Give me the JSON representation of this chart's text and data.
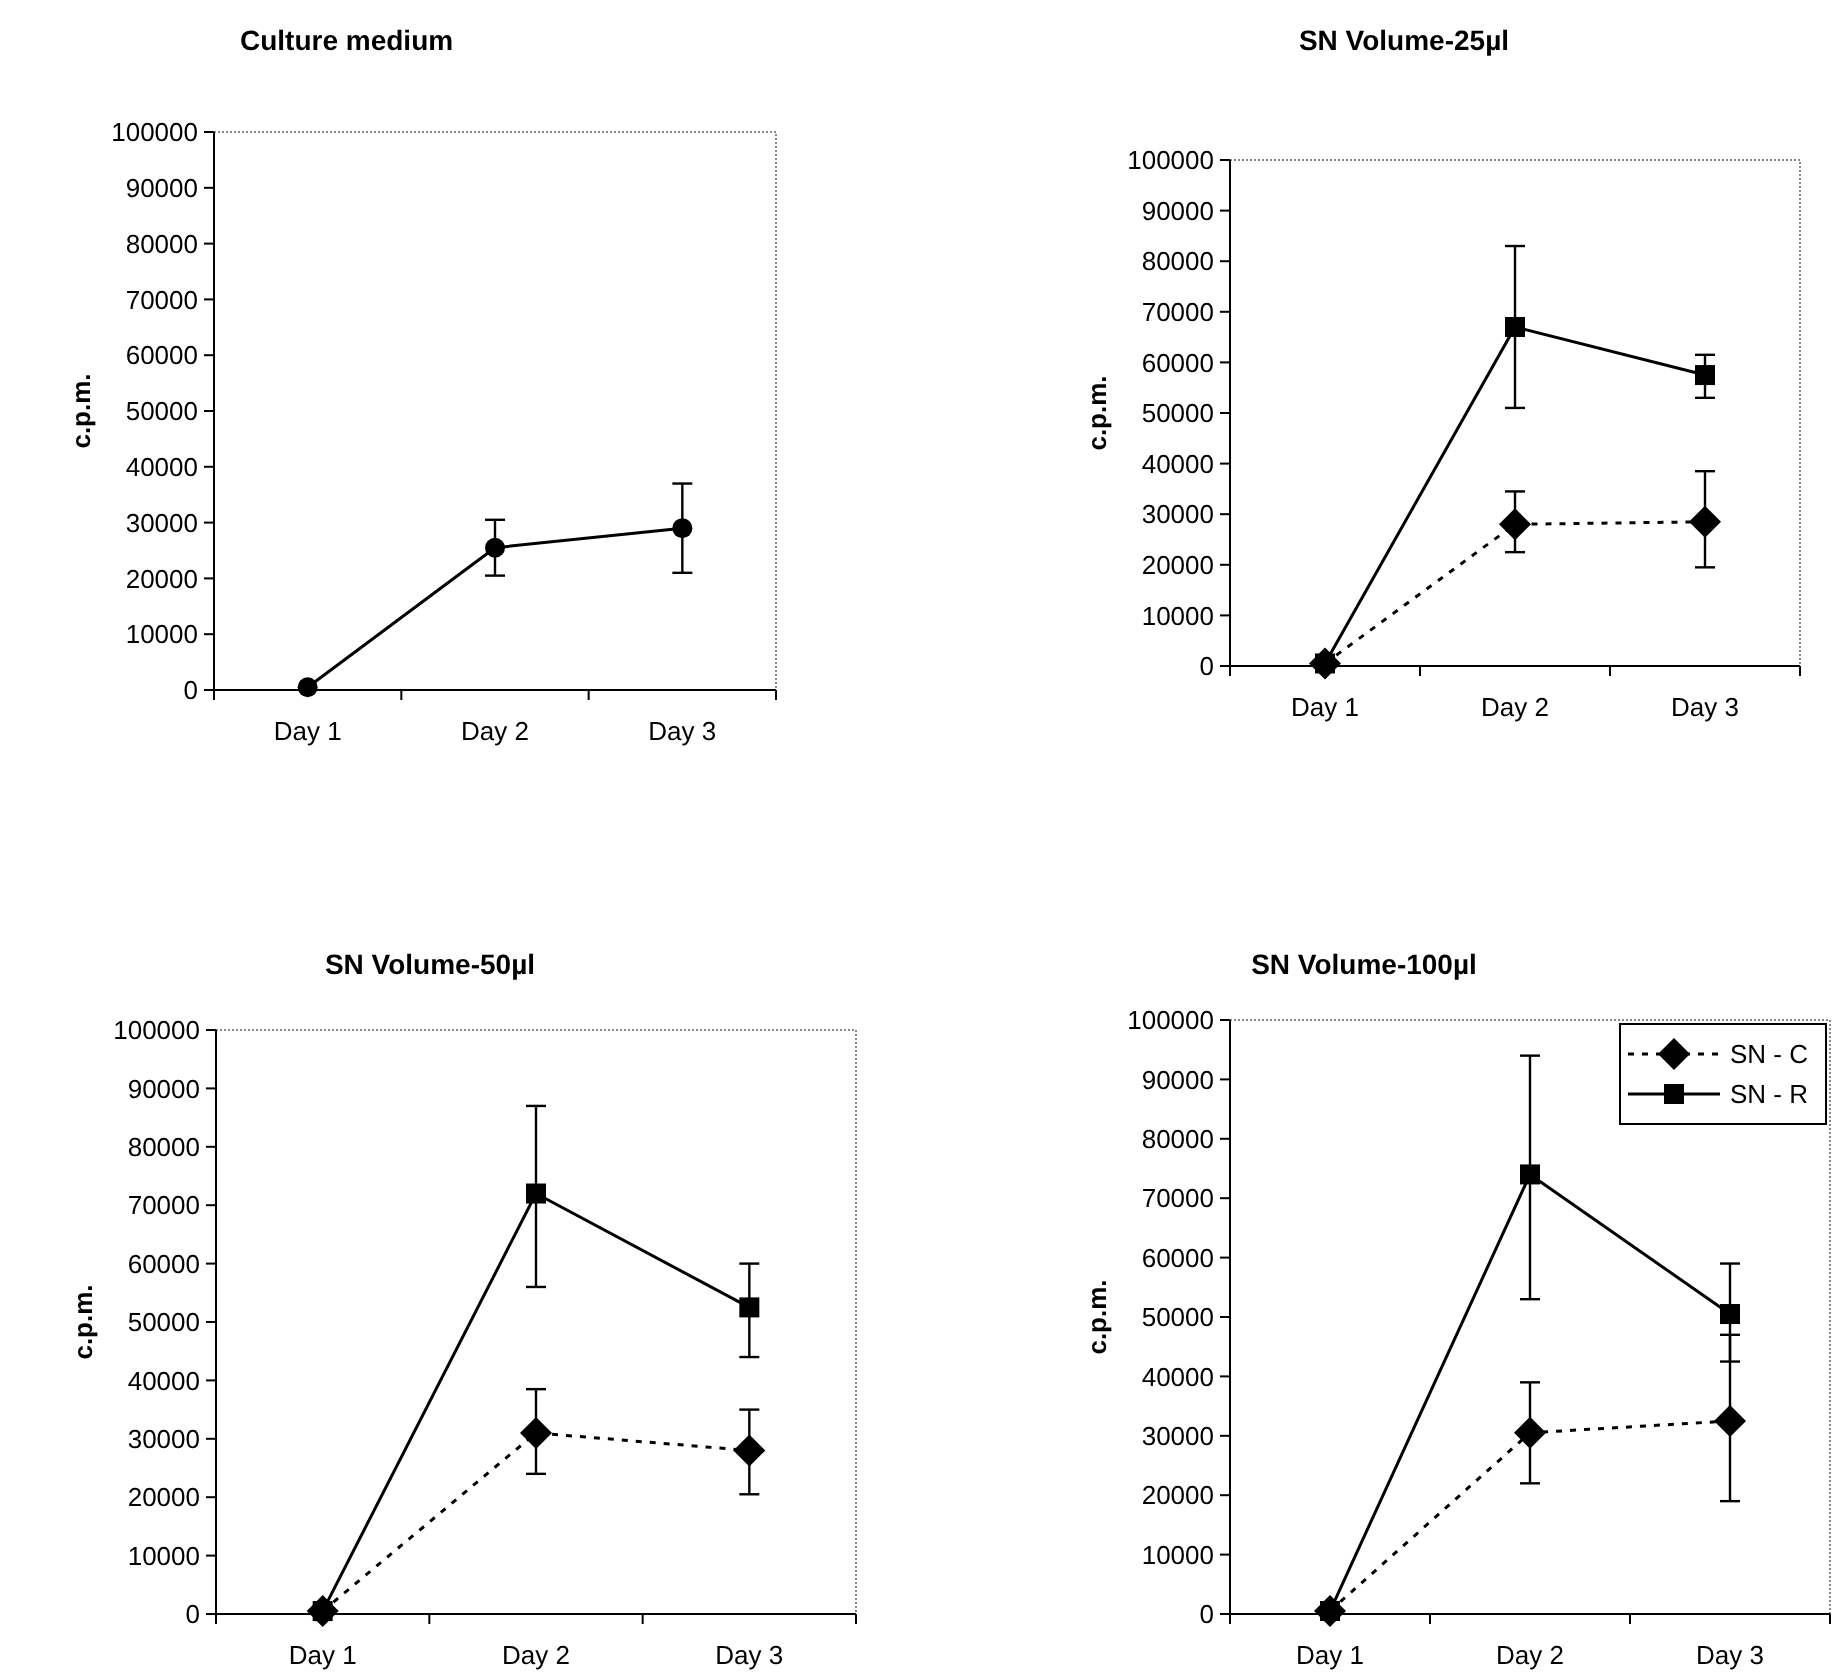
{
  "chart_data": [
    {
      "type": "line",
      "title": "Culture medium",
      "ylabel": "c.p.m.",
      "categories": [
        "Day 1",
        "Day 2",
        "Day 3"
      ],
      "ylim": [
        0,
        100000
      ],
      "yticks": [
        0,
        10000,
        20000,
        30000,
        40000,
        50000,
        60000,
        70000,
        80000,
        90000,
        100000
      ],
      "series": [
        {
          "color": "#000000",
          "marker": "circle",
          "line_style": "solid",
          "values": [
            500,
            25500,
            29000
          ],
          "errors": [
            null,
            [
              20500,
              30500
            ],
            [
              21000,
              37000
            ]
          ]
        }
      ]
    },
    {
      "type": "line",
      "title": "SN Volume-25µl",
      "ylabel": "c.p.m.",
      "categories": [
        "Day 1",
        "Day 2",
        "Day 3"
      ],
      "ylim": [
        0,
        100000
      ],
      "yticks": [
        0,
        10000,
        20000,
        30000,
        40000,
        50000,
        60000,
        70000,
        80000,
        90000,
        100000
      ],
      "series": [
        {
          "color": "#000000",
          "marker": "diamond",
          "line_style": "dashed",
          "values": [
            500,
            28000,
            28500
          ],
          "errors": [
            null,
            [
              22500,
              34500
            ],
            [
              19500,
              38500
            ]
          ]
        },
        {
          "color": "#000000",
          "marker": "square",
          "line_style": "solid",
          "values": [
            500,
            67000,
            57500
          ],
          "errors": [
            null,
            [
              51000,
              83000
            ],
            [
              53000,
              61500
            ]
          ]
        }
      ]
    },
    {
      "type": "line",
      "title": "SN Volume-50µl",
      "ylabel": "c.p.m.",
      "categories": [
        "Day 1",
        "Day 2",
        "Day 3"
      ],
      "ylim": [
        0,
        100000
      ],
      "yticks": [
        0,
        10000,
        20000,
        30000,
        40000,
        50000,
        60000,
        70000,
        80000,
        90000,
        100000
      ],
      "series": [
        {
          "color": "#000000",
          "marker": "diamond",
          "line_style": "dashed",
          "values": [
            500,
            31000,
            28000
          ],
          "errors": [
            null,
            [
              24000,
              38500
            ],
            [
              20500,
              35000
            ]
          ]
        },
        {
          "color": "#000000",
          "marker": "square",
          "line_style": "solid",
          "values": [
            500,
            72000,
            52500
          ],
          "errors": [
            null,
            [
              56000,
              87000
            ],
            [
              44000,
              60000
            ]
          ]
        }
      ]
    },
    {
      "type": "line",
      "title": "SN Volume-100µl",
      "ylabel": "c.p.m.",
      "categories": [
        "Day 1",
        "Day 2",
        "Day 3"
      ],
      "ylim": [
        0,
        100000
      ],
      "yticks": [
        0,
        10000,
        20000,
        30000,
        40000,
        50000,
        60000,
        70000,
        80000,
        90000,
        100000
      ],
      "legend": "top right",
      "series": [
        {
          "name": "SN - C",
          "color": "#000000",
          "marker": "diamond",
          "line_style": "dashed",
          "values": [
            500,
            30500,
            32500
          ],
          "errors": [
            null,
            [
              22000,
              39000
            ],
            [
              19000,
              47000
            ]
          ]
        },
        {
          "name": "SN - R",
          "color": "#000000",
          "marker": "square",
          "line_style": "solid",
          "values": [
            500,
            74000,
            50500
          ],
          "errors": [
            null,
            [
              53000,
              94000
            ],
            [
              42500,
              59000
            ]
          ]
        }
      ]
    }
  ]
}
